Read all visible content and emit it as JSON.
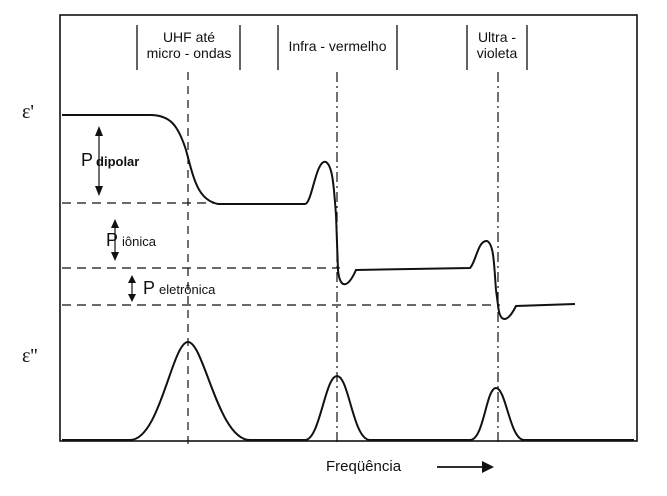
{
  "bands": {
    "uhf": [
      "UHF  até",
      "micro - ondas"
    ],
    "ir": "Infra - vermelho",
    "uv": [
      "Ultra -",
      "violeta"
    ]
  },
  "axes": {
    "eps_real": "ε'",
    "eps_imag": "ε''",
    "xlabel": "Freqüência"
  },
  "polarizations": {
    "dipolar": {
      "p": "P",
      "sub": "dipolar"
    },
    "ionic": {
      "p": "P",
      "sub": "iônica"
    },
    "electronic": {
      "p": "P",
      "sub": "eletrônica"
    }
  }
}
